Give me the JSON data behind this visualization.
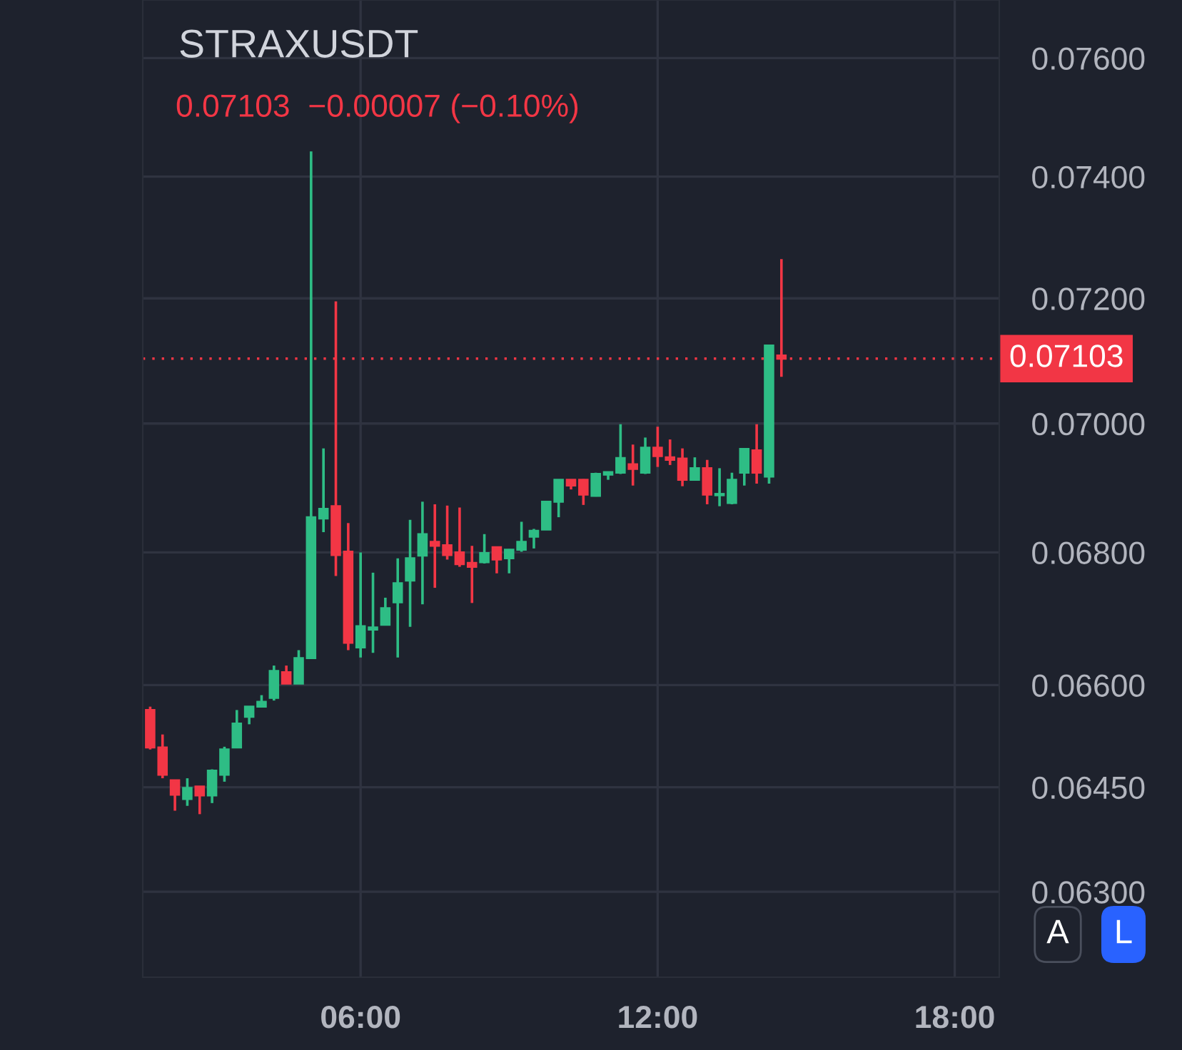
{
  "chart_data": {
    "type": "candlestick",
    "title": "STRAXUSDT",
    "subtitle": "0.07103  −0.00007 (−0.10%)",
    "annotations": [
      "A",
      "L"
    ],
    "x": [
      1.75,
      2,
      2.25,
      2.5,
      2.75,
      3,
      3.25,
      3.5,
      3.75,
      4,
      4.25,
      4.5,
      4.75,
      5,
      5.25,
      5.5,
      5.75,
      6,
      6.25,
      6.5,
      6.75,
      7,
      7.25,
      7.5,
      7.75,
      8,
      8.25,
      8.5,
      8.75,
      9,
      9.25,
      9.5,
      9.75,
      10,
      10.25,
      10.5,
      10.75,
      11,
      11.25,
      11.5,
      11.75,
      12,
      12.25,
      12.5,
      12.75,
      13,
      13.25,
      13.5,
      13.75,
      14,
      14.25,
      14.5
    ],
    "ohlc": [
      [
        0.06563,
        0.06568,
        0.06505,
        0.06508
      ],
      [
        0.06508,
        0.06527,
        0.06463,
        0.06468
      ],
      [
        0.0646,
        0.0646,
        0.06416,
        0.06439
      ],
      [
        0.06433,
        0.06463,
        0.06423,
        0.06449
      ],
      [
        0.06451,
        0.06451,
        0.06411,
        0.06438
      ],
      [
        0.06438,
        0.06476,
        0.06427,
        0.06474
      ],
      [
        0.06468,
        0.06509,
        0.06458,
        0.06505
      ],
      [
        0.06508,
        0.06563,
        0.06508,
        0.06543
      ],
      [
        0.06553,
        0.06568,
        0.06542,
        0.06568
      ],
      [
        0.06568,
        0.06585,
        0.06567,
        0.06575
      ],
      [
        0.06581,
        0.06629,
        0.06577,
        0.06621
      ],
      [
        0.06619,
        0.06629,
        0.06602,
        0.06602
      ],
      [
        0.06602,
        0.06652,
        0.06602,
        0.0664
      ],
      [
        0.0664,
        0.07442,
        0.06639,
        0.06854
      ],
      [
        0.06852,
        0.06961,
        0.06831,
        0.06867
      ],
      [
        0.06871,
        0.07195,
        0.06764,
        0.06796
      ],
      [
        0.06801,
        0.06845,
        0.06652,
        0.06663
      ],
      [
        0.06656,
        0.068,
        0.06641,
        0.06688
      ],
      [
        0.06683,
        0.06769,
        0.06648,
        0.06686
      ],
      [
        0.0669,
        0.06731,
        0.0669,
        0.06715
      ],
      [
        0.06724,
        0.06791,
        0.06641,
        0.06753
      ],
      [
        0.06757,
        0.0685,
        0.06687,
        0.06791
      ],
      [
        0.06795,
        0.06878,
        0.06721,
        0.06828
      ],
      [
        0.06816,
        0.06874,
        0.06746,
        0.0681
      ],
      [
        0.06811,
        0.06872,
        0.06789,
        0.06796
      ],
      [
        0.068,
        0.06869,
        0.06778,
        0.06782
      ],
      [
        0.06784,
        0.0681,
        0.06723,
        0.06778
      ],
      [
        0.06785,
        0.06828,
        0.06783,
        0.06799
      ],
      [
        0.06808,
        0.06808,
        0.06768,
        0.06789
      ],
      [
        0.06791,
        0.06805,
        0.06768,
        0.06804
      ],
      [
        0.06804,
        0.06847,
        0.06801,
        0.06816
      ],
      [
        0.06824,
        0.06836,
        0.06806,
        0.06833
      ],
      [
        0.06835,
        0.06878,
        0.06835,
        0.06878
      ],
      [
        0.06878,
        0.06912,
        0.06854,
        0.06912
      ],
      [
        0.06912,
        0.06912,
        0.06897,
        0.06903
      ],
      [
        0.06912,
        0.06913,
        0.06873,
        0.06889
      ],
      [
        0.06887,
        0.06923,
        0.06886,
        0.06921
      ],
      [
        0.0692,
        0.06924,
        0.06912,
        0.06924
      ],
      [
        0.06923,
        0.06999,
        0.06921,
        0.06946
      ],
      [
        0.06936,
        0.06967,
        0.06903,
        0.06929
      ],
      [
        0.06923,
        0.06978,
        0.06921,
        0.06962
      ],
      [
        0.06962,
        0.06995,
        0.06932,
        0.06949
      ],
      [
        0.06947,
        0.06975,
        0.06935,
        0.06943
      ],
      [
        0.06945,
        0.06961,
        0.06902,
        0.06912
      ],
      [
        0.06912,
        0.06947,
        0.06911,
        0.0693
      ],
      [
        0.0693,
        0.06943,
        0.06874,
        0.06889
      ],
      [
        0.06888,
        0.0693,
        0.06871,
        0.0689
      ],
      [
        0.06876,
        0.06923,
        0.06874,
        0.06912
      ],
      [
        0.06923,
        0.0696,
        0.06903,
        0.0696
      ],
      [
        0.06958,
        0.06999,
        0.06906,
        0.06923
      ],
      [
        0.06917,
        0.07124,
        0.06906,
        0.07124
      ],
      [
        0.07108,
        0.07264,
        0.07074,
        0.07103
      ]
    ],
    "colors": [
      "#f23645",
      "#f23645",
      "#f23645",
      "#2ebd85",
      "#f23645",
      "#2ebd85",
      "#2ebd85",
      "#2ebd85",
      "#2ebd85",
      "#2ebd85",
      "#2ebd85",
      "#f23645",
      "#2ebd85",
      "#2ebd85",
      "#2ebd85",
      "#f23645",
      "#f23645",
      "#2ebd85",
      "#2ebd85",
      "#2ebd85",
      "#2ebd85",
      "#2ebd85",
      "#2ebd85",
      "#f23645",
      "#f23645",
      "#f23645",
      "#f23645",
      "#2ebd85",
      "#f23645",
      "#2ebd85",
      "#2ebd85",
      "#2ebd85",
      "#2ebd85",
      "#2ebd85",
      "#f23645",
      "#f23645",
      "#2ebd85",
      "#2ebd85",
      "#2ebd85",
      "#f23645",
      "#2ebd85",
      "#f23645",
      "#f23645",
      "#f23645",
      "#2ebd85",
      "#f23645",
      "#2ebd85",
      "#2ebd85",
      "#2ebd85",
      "#f23645",
      "#2ebd85",
      "#f23645"
    ],
    "log": true,
    "xlim": [
      1.6,
      18.9
    ],
    "xticks": [
      {
        "value": 6,
        "label": "06:00"
      },
      {
        "value": 12,
        "label": "12:00"
      },
      {
        "value": 18,
        "label": "18:00"
      }
    ],
    "ylim": [
      0.0618,
      0.077
    ],
    "yticks": [
      {
        "value": 0.063,
        "label": "0.06300"
      },
      {
        "value": 0.0645,
        "label": "0.06450"
      },
      {
        "value": 0.066,
        "label": "0.06600"
      },
      {
        "value": 0.068,
        "label": "0.06800"
      },
      {
        "value": 0.07,
        "label": "0.07000"
      },
      {
        "value": 0.072,
        "label": "0.07200"
      },
      {
        "value": 0.074,
        "label": "0.07400"
      },
      {
        "value": 0.076,
        "label": "0.07600"
      }
    ],
    "ref_lines": [
      {
        "axis": "y",
        "value": 0.07103,
        "label": "0.07103",
        "color": "#f23645",
        "line_style": "dotted"
      }
    ],
    "grid": true
  }
}
